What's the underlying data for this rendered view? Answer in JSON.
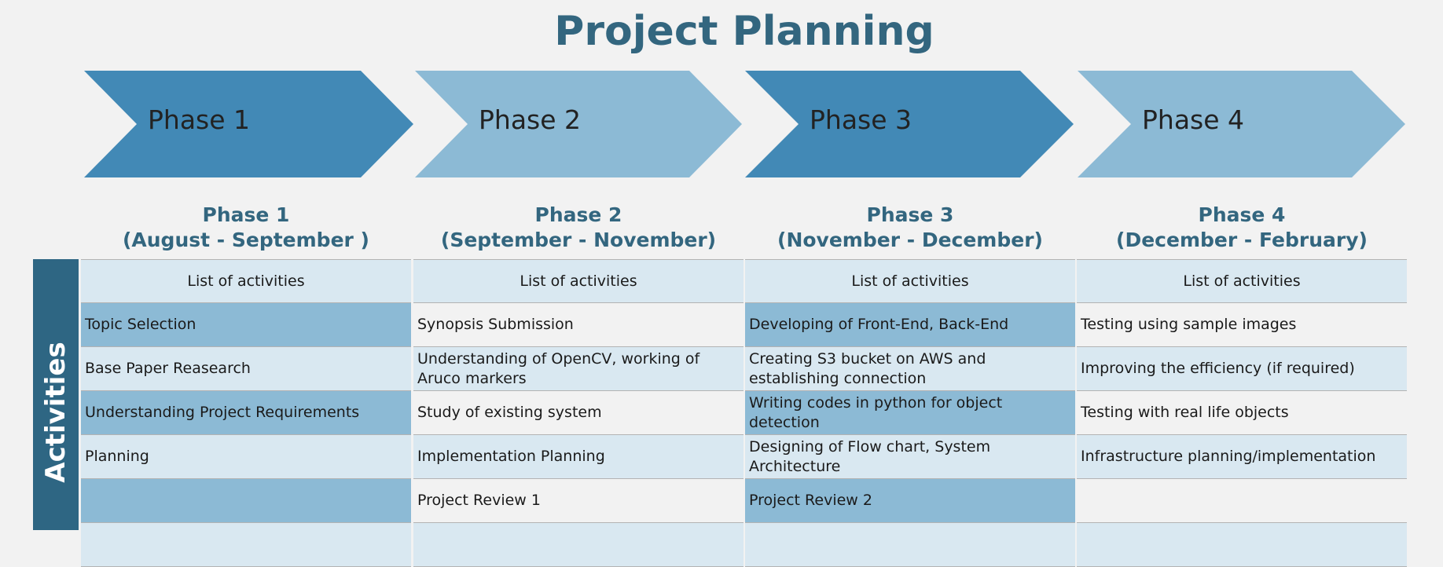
{
  "title": "Project Planning",
  "colors": {
    "dark_chevron": "#4289b6",
    "light_chevron": "#8cbad5",
    "title": "#33667f",
    "side_bar": "#2e6683",
    "cell_light": "#d9e8f1",
    "cell_mid": "#8cbad5"
  },
  "chevrons": [
    {
      "label": "Phase 1",
      "tone": "dark"
    },
    {
      "label": "Phase 2",
      "tone": "light"
    },
    {
      "label": "Phase 3",
      "tone": "dark"
    },
    {
      "label": "Phase 4",
      "tone": "light"
    }
  ],
  "side_label": "Activities",
  "phases": [
    {
      "name": "Phase 1",
      "period": "(August - September )",
      "header": "List of activities",
      "activities": [
        "Topic Selection",
        "Base Paper Reasearch",
        "Understanding Project Requirements",
        "Planning",
        ""
      ]
    },
    {
      "name": "Phase 2",
      "period": "(September - November)",
      "header": "List of activities",
      "activities": [
        "Synopsis Submission",
        "Understanding of OpenCV, working of Aruco markers",
        "Study of existing system",
        "Implementation Planning",
        "Project Review 1"
      ]
    },
    {
      "name": "Phase 3",
      "period": "(November - December)",
      "header": "List of activities",
      "activities": [
        "Developing of Front-End, Back-End",
        "Creating S3 bucket on AWS and establishing connection",
        "Writing codes in python for object detection",
        "Designing of Flow chart, System Architecture",
        "Project Review 2"
      ]
    },
    {
      "name": "Phase 4",
      "period": "(December - February)",
      "header": "List of activities",
      "activities": [
        "Testing using sample images",
        "Improving the efficiency (if required)",
        "Testing with real life objects",
        "Infrastructure planning/implementation",
        ""
      ]
    }
  ]
}
